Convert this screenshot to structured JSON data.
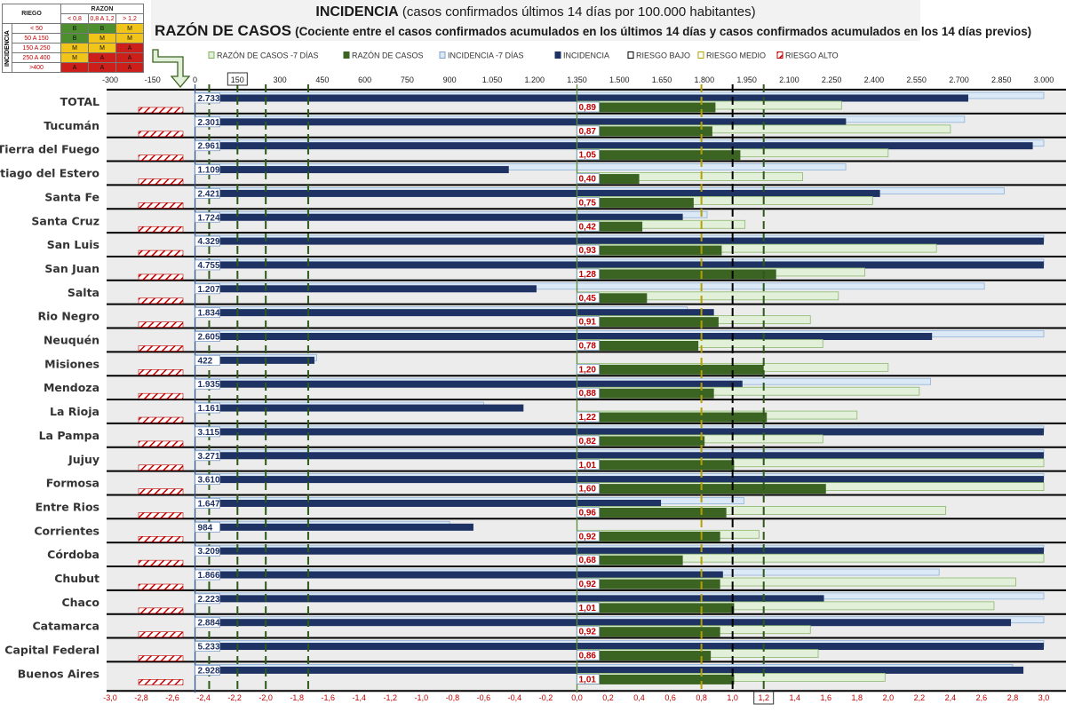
{
  "title": {
    "line1_bold": "INCIDENCIA",
    "line1_rest": "(casos confirmados últimos 14 días por 100.000 habitantes)",
    "line2_bold": "RAZÓN DE CASOS",
    "line2_rest": "(Cociente entre el casos confirmados acumulados en los últimos 14 días y casos confirmados acumulados en los 14 días previos)"
  },
  "risk_table": {
    "corner": "RIEGO",
    "razon_header": "RAZON",
    "incidencia_header": "INCIDENCIA",
    "razon_levels": [
      "< 0,8",
      "0,8 A 1,2",
      "> 1,2"
    ],
    "rows": [
      {
        "label": "< 50",
        "cells": [
          "B",
          "B",
          "M"
        ],
        "colors": [
          "#4d8f2f",
          "#4d8f2f",
          "#f0c419"
        ]
      },
      {
        "label": "50 A 150",
        "cells": [
          "B",
          "M",
          "M"
        ],
        "colors": [
          "#4d8f2f",
          "#f0c419",
          "#f0c419"
        ]
      },
      {
        "label": "150 A 250",
        "cells": [
          "M",
          "M",
          "A"
        ],
        "colors": [
          "#f0c419",
          "#f0c419",
          "#cc1f1a"
        ]
      },
      {
        "label": "250 A 400",
        "cells": [
          "M",
          "A",
          "A"
        ],
        "colors": [
          "#f0c419",
          "#cc1f1a",
          "#cc1f1a"
        ]
      },
      {
        "label": ">400",
        "cells": [
          "A",
          "A",
          "A"
        ],
        "colors": [
          "#cc1f1a",
          "#cc1f1a",
          "#cc1f1a"
        ]
      }
    ]
  },
  "chart_data": {
    "type": "bar",
    "orientation": "horizontal",
    "legend": [
      "RAZÓN DE CASOS -7 DÍAS",
      "RAZÓN DE CASOS",
      "INCIDENCIA -7 DÍAS",
      "INCIDENCIA",
      "RIESGO BAJO",
      "RIESGO MEDIO",
      "RIESGO ALTO"
    ],
    "colors": {
      "incidencia": "#1f3264",
      "incidencia_7": "#dbe9f6",
      "razon": "#3b6321",
      "razon_7": "#e2efd9",
      "riesgo_bajo": "#2d5a1b",
      "riesgo_medio": "#b5a000",
      "riesgo_alto": "#c00000"
    },
    "categories": [
      "TOTAL",
      "Tucumán",
      "Tierra del Fuego",
      "Santiago del Estero",
      "Santa Fe",
      "Santa Cruz",
      "San Luis",
      "San Juan",
      "Salta",
      "Rio Negro",
      "Neuquén",
      "Misiones",
      "Mendoza",
      "La Rioja",
      "La Pampa",
      "Jujuy",
      "Formosa",
      "Entre Rios",
      "Corrientes",
      "Córdoba",
      "Chubut",
      "Chaco",
      "Catamarca",
      "Capital Federal",
      "Buenos Aires"
    ],
    "incidencia": [
      2733,
      2301,
      2961,
      1109,
      2421,
      1724,
      4329,
      4755,
      1207,
      1834,
      2605,
      422,
      1935,
      1161,
      3115,
      3271,
      3610,
      1647,
      984,
      3209,
      1866,
      2223,
      2884,
      5233,
      2928
    ],
    "incidencia_labels": [
      "2.733",
      "2.301",
      "2.961",
      "1.109",
      "2.421",
      "1.724",
      "4.329",
      "4.755",
      "1.207",
      "1.834",
      "2.605",
      "422",
      "1.935",
      "1.161",
      "3.115",
      "3.271",
      "3.610",
      "1.647",
      "984",
      "3.209",
      "1.866",
      "2.223",
      "2.884",
      "5.233",
      "2.928"
    ],
    "incidencia_7": [
      3000,
      2720,
      3000,
      2300,
      2860,
      1810,
      3000,
      3000,
      2790,
      1740,
      3000,
      430,
      2600,
      1020,
      3000,
      3000,
      3000,
      1940,
      900,
      3000,
      2630,
      3000,
      3000,
      3000,
      2890
    ],
    "razon": [
      0.89,
      0.87,
      1.05,
      0.4,
      0.75,
      0.42,
      0.93,
      1.28,
      0.45,
      0.91,
      0.78,
      1.2,
      0.88,
      1.22,
      0.82,
      1.01,
      1.6,
      0.96,
      0.92,
      0.68,
      0.92,
      1.01,
      0.92,
      0.86,
      1.01
    ],
    "razon_labels": [
      "0,89",
      "0,87",
      "1,05",
      "0,40",
      "0,75",
      "0,42",
      "0,93",
      "1,28",
      "0,45",
      "0,91",
      "0,78",
      "1,20",
      "0,88",
      "1,22",
      "0,82",
      "1,01",
      "1,60",
      "0,96",
      "0,92",
      "0,68",
      "0,92",
      "1,01",
      "0,92",
      "0,86",
      "1,01"
    ],
    "razon_7": [
      1.7,
      2.4,
      2.0,
      1.45,
      1.9,
      1.08,
      2.31,
      1.85,
      1.68,
      1.5,
      1.58,
      2.0,
      2.2,
      1.8,
      1.58,
      3.0,
      3.0,
      2.37,
      1.17,
      3.0,
      2.82,
      2.68,
      1.5,
      1.55,
      1.98
    ],
    "top_axis": {
      "min": -300,
      "max": 3000,
      "ticks": [
        "-300",
        "-150",
        "0",
        "150",
        "300",
        "450",
        "600",
        "750",
        "900",
        "1.050",
        "1.200",
        "1.350",
        "1.500",
        "1.650",
        "1.800",
        "1.950",
        "2.100",
        "2.250",
        "2.400",
        "2.550",
        "2.700",
        "2.850",
        "3.000"
      ],
      "boxed": "150"
    },
    "bottom_axis": {
      "min": -3.0,
      "max": 3.0,
      "ticks": [
        "-3,0",
        "-2,8",
        "-2,6",
        "-2,4",
        "-2,2",
        "-2,0",
        "-1,8",
        "-1,6",
        "-1,4",
        "-1,2",
        "-1,0",
        "-0,8",
        "-0,6",
        "-0,4",
        "-0,2",
        "0,0",
        "0,2",
        "0,4",
        "0,6",
        "0,8",
        "1,0",
        "1,2",
        "1,4",
        "1,6",
        "1,8",
        "2,0",
        "2,2",
        "2,4",
        "2,6",
        "2,8",
        "3,0"
      ],
      "boxed": "1,2"
    },
    "incidencia_thresholds": [
      50,
      150,
      250,
      400
    ],
    "razon_thresholds": [
      0.8,
      1.0,
      1.2
    ]
  }
}
